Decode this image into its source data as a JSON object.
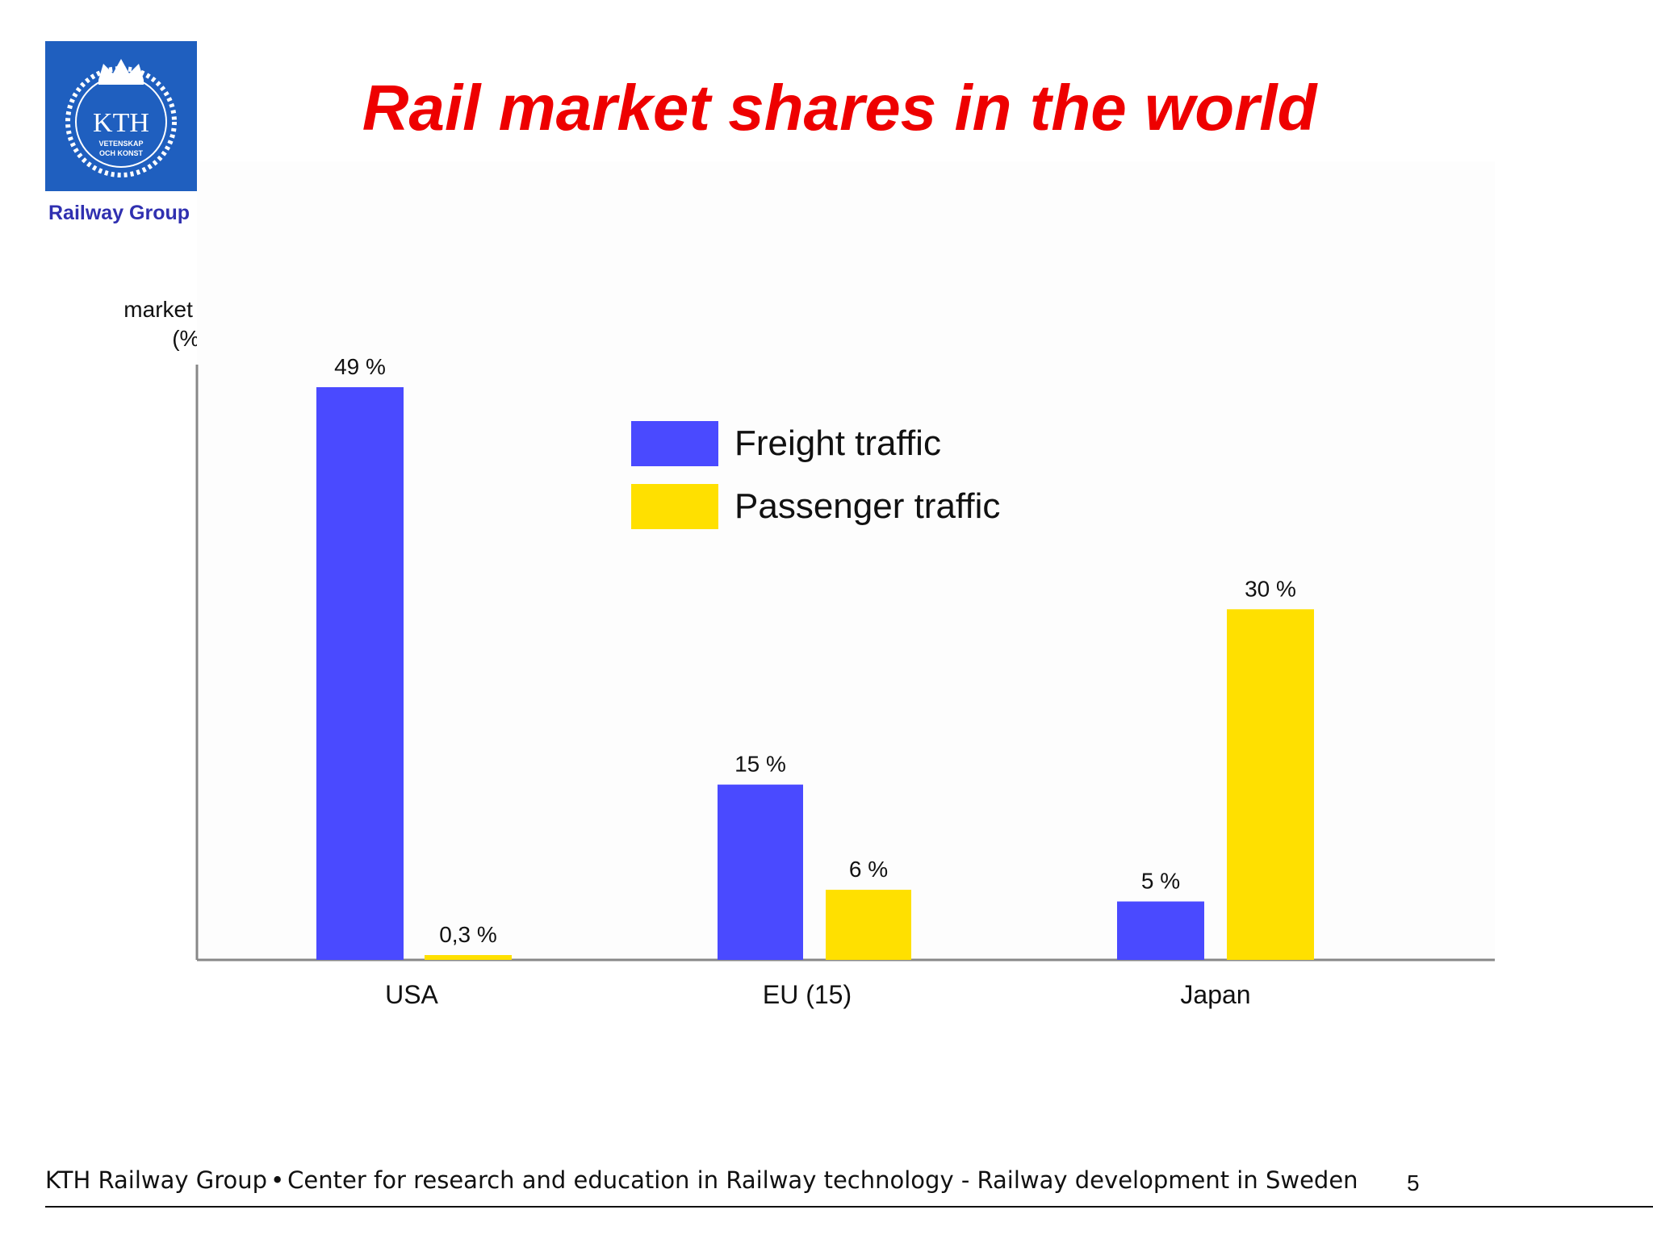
{
  "header": {
    "logo_text": "KTH",
    "logo_subtext_1": "VETENSKAP",
    "logo_subtext_2": "OCH KONST",
    "group_name": "Railway Group",
    "title": "Rail market shares in the world"
  },
  "chart_data": {
    "type": "bar",
    "title": "Rail market shares in the world",
    "ylabel_line1": "market share",
    "ylabel_line2": "(%)",
    "xlabel": "",
    "categories": [
      "USA",
      "EU (15)",
      "Japan"
    ],
    "series": [
      {
        "name": "Freight traffic",
        "values": [
          49,
          15,
          5
        ],
        "labels": [
          "49 %",
          "15 %",
          "5 %"
        ],
        "color": "#4a4aff"
      },
      {
        "name": "Passenger traffic",
        "values": [
          0.3,
          6,
          30
        ],
        "labels": [
          "0,3 %",
          "6 %",
          "30 %"
        ],
        "color": "#ffe000"
      }
    ],
    "ylim": [
      0,
      52
    ],
    "grid": false,
    "legend_position": "top-center"
  },
  "footer": {
    "text_left": "KTH Railway Group",
    "separator": "•",
    "text_right": "Center for research and education in Railway technology - Railway development in Sweden",
    "page_number": "5"
  }
}
